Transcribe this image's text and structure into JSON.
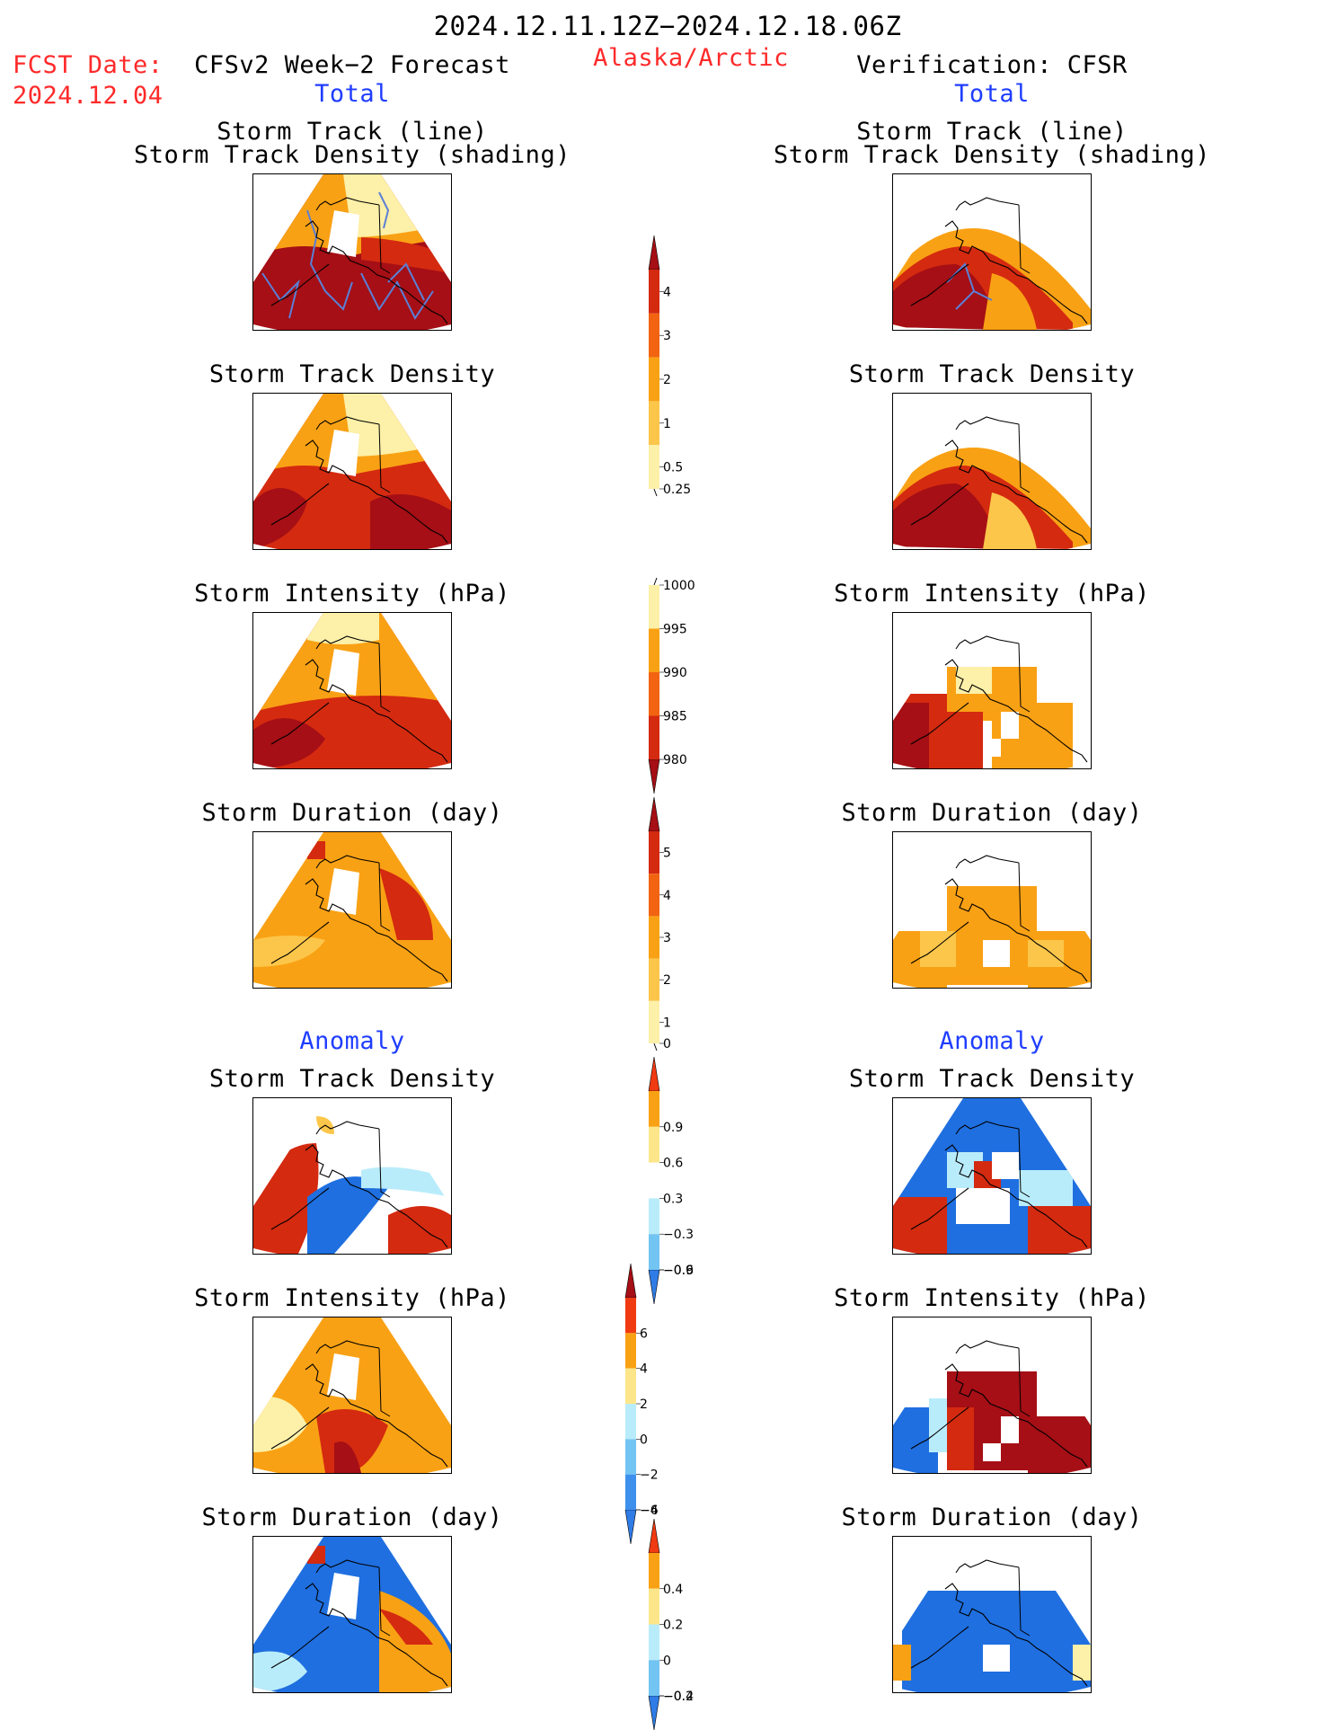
{
  "header": {
    "period": "2024.12.11.12Z−2024.12.18.06Z",
    "region": "Alaska/Arctic",
    "fcst_label": "FCST Date:",
    "fcst_date": "2024.12.04",
    "left_title": "CFSv2 Week−2 Forecast",
    "right_title": "Verification: CFSR",
    "section_total": "Total",
    "section_anomaly": "Anomaly"
  },
  "titles": {
    "track_line": "Storm Track (line)",
    "track_density_shading": "Storm Track Density (shading)",
    "track_density": "Storm Track Density",
    "intensity": "Storm Intensity (hPa)",
    "duration": "Storm Duration (day)"
  },
  "colorbars": {
    "density": {
      "ticks": [
        "4",
        "3",
        "2",
        "1",
        "0.5",
        "0.25"
      ],
      "colors": [
        "#a50f15",
        "#d42a10",
        "#f26411",
        "#f9a114",
        "#fcc64a",
        "#fdf0a8"
      ]
    },
    "intensity": {
      "ticks": [
        "1000",
        "995",
        "990",
        "985",
        "980"
      ],
      "colors": [
        "#fdf0a8",
        "#f9a114",
        "#f26411",
        "#d42a10",
        "#a50f15"
      ]
    },
    "duration": {
      "ticks": [
        "5",
        "4",
        "3",
        "2",
        "1",
        "0"
      ],
      "colors": [
        "#a50f15",
        "#d42a10",
        "#f26411",
        "#f9a114",
        "#fcc64a",
        "#fdf0a8"
      ]
    },
    "density_anom": {
      "ticks": [
        "0.9",
        "0.6",
        "0.3",
        "−0.3",
        "−0.6",
        "−0.9"
      ],
      "colors": [
        "#f03a12",
        "#f9a114",
        "#fde68a",
        "#ffffff",
        "#b9ecfb",
        "#72c4f2",
        "#2f7ce6"
      ]
    },
    "intensity_anom": {
      "ticks": [
        "6",
        "4",
        "2",
        "0",
        "−2",
        "−4",
        "−6"
      ],
      "colors": [
        "#a50f15",
        "#f03a12",
        "#f9a114",
        "#fde68a",
        "#b9ecfb",
        "#72c4f2",
        "#3d90ec",
        "#2f7ce6"
      ]
    },
    "duration_anom": {
      "ticks": [
        "0.4",
        "0.2",
        "0",
        "−0.2",
        "−0.4"
      ],
      "colors": [
        "#f03a12",
        "#f9a114",
        "#fde68a",
        "#b9ecfb",
        "#72c4f2",
        "#2f7ce6"
      ]
    }
  },
  "colors": {
    "dark_red": "#a50f15",
    "red": "#d42a10",
    "orange_red": "#f26411",
    "orange": "#f9a114",
    "light_orange": "#fcc64a",
    "pale_yellow": "#fdf0a8",
    "blue": "#1f6fe0",
    "light_blue": "#b9ecfb",
    "track_line": "#5b7fd6"
  }
}
